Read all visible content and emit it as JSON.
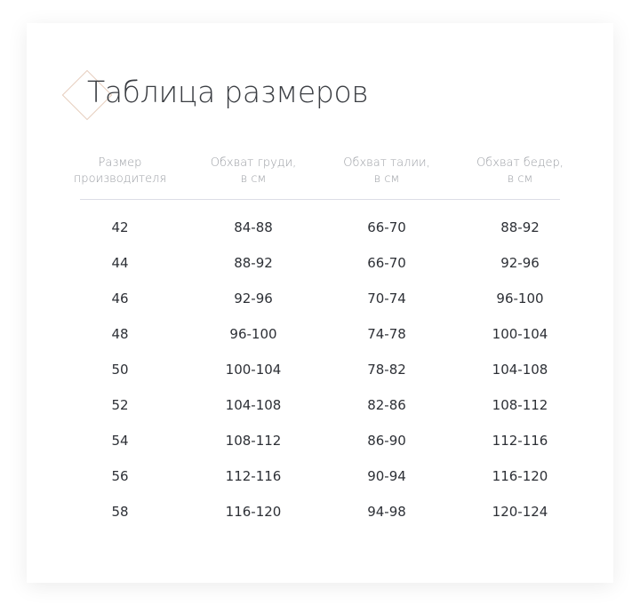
{
  "title": "Таблица размеров",
  "colors": {
    "accent": "#e6cdbd",
    "text": "#2d3036",
    "header": "#9a9da3"
  },
  "headers": [
    [
      "Размер",
      "производителя"
    ],
    [
      "Обхват груди,",
      "в см"
    ],
    [
      "Обхват талии,",
      "в см"
    ],
    [
      "Обхват бедер,",
      "в см"
    ]
  ],
  "rows": [
    [
      "42",
      "84-88",
      "66-70",
      "88-92"
    ],
    [
      "44",
      "88-92",
      "66-70",
      "92-96"
    ],
    [
      "46",
      "92-96",
      "70-74",
      "96-100"
    ],
    [
      "48",
      "96-100",
      "74-78",
      "100-104"
    ],
    [
      "50",
      "100-104",
      "78-82",
      "104-108"
    ],
    [
      "52",
      "104-108",
      "82-86",
      "108-112"
    ],
    [
      "54",
      "108-112",
      "86-90",
      "112-116"
    ],
    [
      "56",
      "112-116",
      "90-94",
      "116-120"
    ],
    [
      "58",
      "116-120",
      "94-98",
      "120-124"
    ]
  ]
}
